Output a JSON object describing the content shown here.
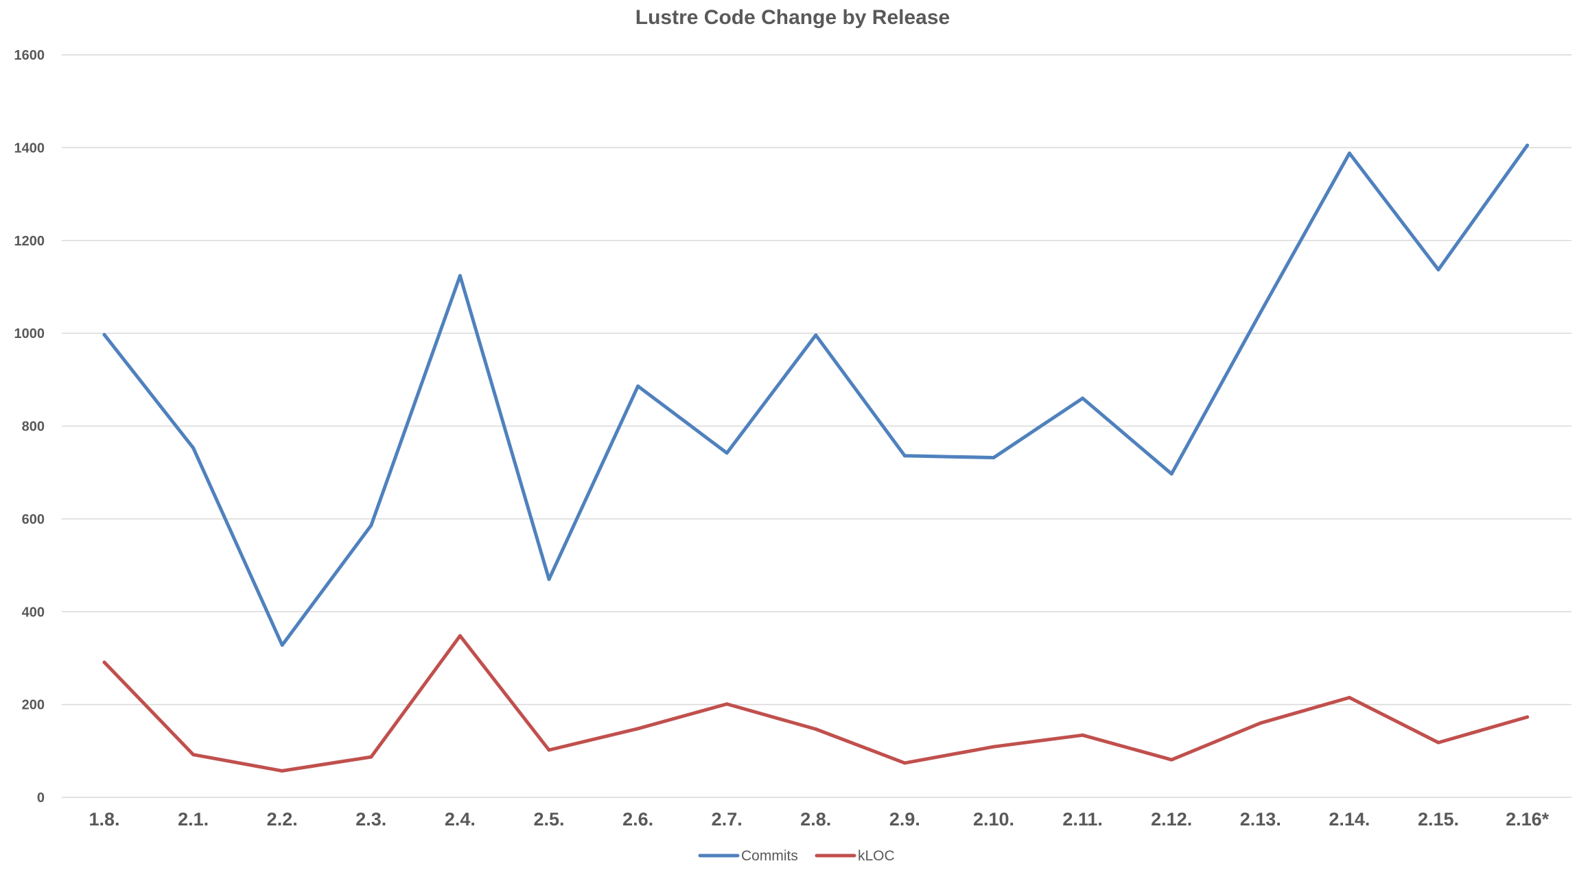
{
  "chart_data": {
    "type": "line",
    "title": "Lustre Code Change by Release",
    "xlabel": "",
    "ylabel": "",
    "categories": [
      "1.8.",
      "2.1.",
      "2.2.",
      "2.3.",
      "2.4.",
      "2.5.",
      "2.6.",
      "2.7.",
      "2.8.",
      "2.9.",
      "2.10.",
      "2.11.",
      "2.12.",
      "2.13.",
      "2.14.",
      "2.15.",
      "2.16*"
    ],
    "series": [
      {
        "name": "Commits",
        "color": "#4f81bd",
        "values": [
          997,
          753,
          328,
          586,
          1124,
          470,
          886,
          742,
          996,
          736,
          732,
          860,
          697,
          1045,
          1388,
          1137,
          1405
        ]
      },
      {
        "name": "kLOC",
        "color": "#c0504d",
        "values": [
          291,
          92,
          57,
          87,
          348,
          102,
          148,
          201,
          147,
          74,
          109,
          134,
          81,
          160,
          215,
          118,
          173
        ]
      }
    ],
    "ylim": [
      0,
      1600
    ],
    "yticks": [
      "0",
      "200",
      "400",
      "600",
      "800",
      "1000",
      "1200",
      "1400",
      "1600"
    ],
    "grid": true,
    "legend": "bottom"
  }
}
